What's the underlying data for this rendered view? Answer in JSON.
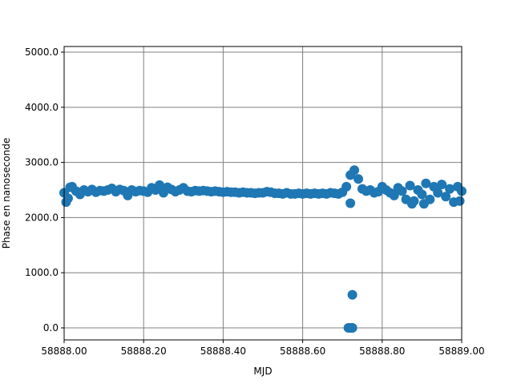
{
  "chart_data": {
    "type": "scatter",
    "x_label": "MJD",
    "y_label": "Phase en nanoseconde",
    "color": "#1f77b4",
    "grid": true,
    "xlim": [
      58888.0,
      58889.0
    ],
    "ylim": [
      -218,
      5102
    ],
    "xticks": [
      {
        "value": 58888.0,
        "label": "58888.00"
      },
      {
        "value": 58888.2,
        "label": "58888.20"
      },
      {
        "value": 58888.4,
        "label": "58888.40"
      },
      {
        "value": 58888.6,
        "label": "58888.60"
      },
      {
        "value": 58888.8,
        "label": "58888.80"
      },
      {
        "value": 58889.0,
        "label": "58889.00"
      }
    ],
    "yticks": [
      {
        "value": 0,
        "label": "0.0"
      },
      {
        "value": 1000,
        "label": "1000.0"
      },
      {
        "value": 2000,
        "label": "2000.0"
      },
      {
        "value": 3000,
        "label": "3000.0"
      },
      {
        "value": 4000,
        "label": "4000.0"
      },
      {
        "value": 5000,
        "label": "5000.0"
      }
    ],
    "x": [
      58888.0,
      58888.01,
      58888.02,
      58888.03,
      58888.04,
      58888.05,
      58888.06,
      58888.07,
      58888.08,
      58888.09,
      58888.1,
      58888.11,
      58888.12,
      58888.13,
      58888.14,
      58888.15,
      58888.16,
      58888.17,
      58888.18,
      58888.19,
      58888.2,
      58888.21,
      58888.22,
      58888.23,
      58888.24,
      58888.25,
      58888.26,
      58888.27,
      58888.28,
      58888.29,
      58888.3,
      58888.31,
      58888.32,
      58888.33,
      58888.34,
      58888.35,
      58888.36,
      58888.37,
      58888.38,
      58888.39,
      58888.4,
      58888.41,
      58888.42,
      58888.43,
      58888.44,
      58888.45,
      58888.46,
      58888.47,
      58888.48,
      58888.49,
      58888.5,
      58888.51,
      58888.52,
      58888.53,
      58888.54,
      58888.55,
      58888.56,
      58888.57,
      58888.58,
      58888.59,
      58888.6,
      58888.61,
      58888.62,
      58888.63,
      58888.64,
      58888.65,
      58888.66,
      58888.67,
      58888.68,
      58888.69,
      58888.7,
      58888.71,
      58888.72,
      58888.73,
      58888.74,
      58888.75,
      58888.76,
      58888.77,
      58888.78,
      58888.79,
      58888.8,
      58888.81,
      58888.82,
      58888.83,
      58888.84,
      58888.85,
      58888.86,
      58888.87,
      58888.88,
      58888.89,
      58888.9,
      58888.91,
      58888.92,
      58888.93,
      58888.94,
      58888.95,
      58888.96,
      58888.97,
      58888.98,
      58888.99,
      58889.0,
      58888.715,
      58888.72,
      58888.725,
      58888.725,
      58888.72,
      58888.005,
      58888.015,
      58888.875,
      58888.905,
      58888.995
    ],
    "y": [
      2450,
      2350,
      2560,
      2480,
      2420,
      2500,
      2470,
      2510,
      2460,
      2490,
      2480,
      2500,
      2530,
      2470,
      2510,
      2490,
      2400,
      2500,
      2470,
      2490,
      2480,
      2460,
      2540,
      2500,
      2590,
      2450,
      2550,
      2510,
      2470,
      2500,
      2540,
      2480,
      2470,
      2490,
      2480,
      2490,
      2480,
      2470,
      2480,
      2470,
      2460,
      2470,
      2460,
      2460,
      2450,
      2460,
      2450,
      2450,
      2440,
      2450,
      2450,
      2470,
      2460,
      2440,
      2440,
      2430,
      2450,
      2430,
      2430,
      2440,
      2430,
      2440,
      2430,
      2440,
      2430,
      2440,
      2430,
      2450,
      2440,
      2430,
      2460,
      2560,
      2770,
      2860,
      2700,
      2520,
      2480,
      2500,
      2450,
      2470,
      2560,
      2500,
      2450,
      2400,
      2540,
      2480,
      2330,
      2580,
      2300,
      2500,
      2420,
      2620,
      2330,
      2560,
      2450,
      2600,
      2380,
      2520,
      2280,
      2560,
      2480,
      0,
      0,
      0,
      600,
      2260,
      2280,
      2550,
      2250,
      2250,
      2300
    ]
  }
}
